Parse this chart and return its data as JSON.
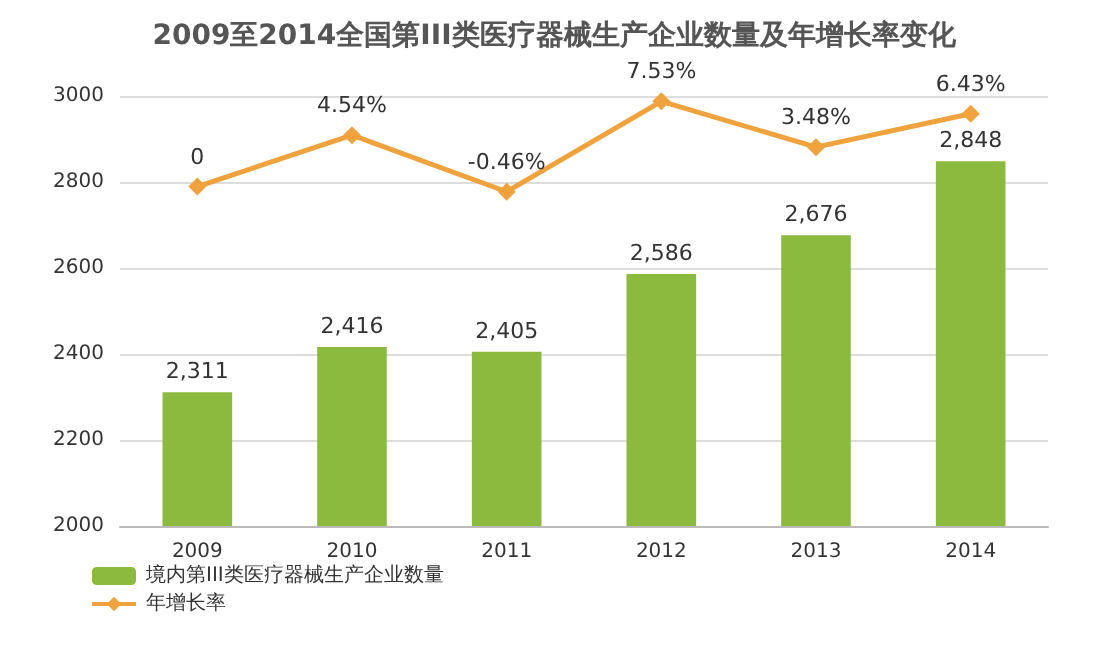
{
  "chart_data": {
    "type": "bar",
    "title": "2009至2014全国第III类医疗器械生产企业数量及年增长率变化",
    "categories": [
      "2009",
      "2010",
      "2011",
      "2012",
      "2013",
      "2014"
    ],
    "series": [
      {
        "name": "境内第III类医疗器械生产企业数量",
        "color": "#8cba3e",
        "values": [
          2311,
          2416,
          2405,
          2586,
          2676,
          2848
        ],
        "value_labels": [
          "2,311",
          "2,416",
          "2,405",
          "2,586",
          "2,676",
          "2,848"
        ]
      },
      {
        "name": "年增长率",
        "type": "line",
        "axis": "y2",
        "color": "#f0a23c",
        "marker": "diamond",
        "values": [
          0,
          4.54,
          -0.46,
          7.53,
          3.48,
          6.43
        ],
        "value_labels": [
          "0",
          "4.54%",
          "-0.46%",
          "7.53%",
          "3.48%",
          "6.43%"
        ]
      }
    ],
    "ylim": [
      2000,
      3000
    ],
    "yticks": [
      2000,
      2200,
      2400,
      2600,
      2800,
      3000
    ],
    "y2lim": [
      -30,
      8
    ],
    "grid": "y",
    "legend": "bottom left"
  }
}
